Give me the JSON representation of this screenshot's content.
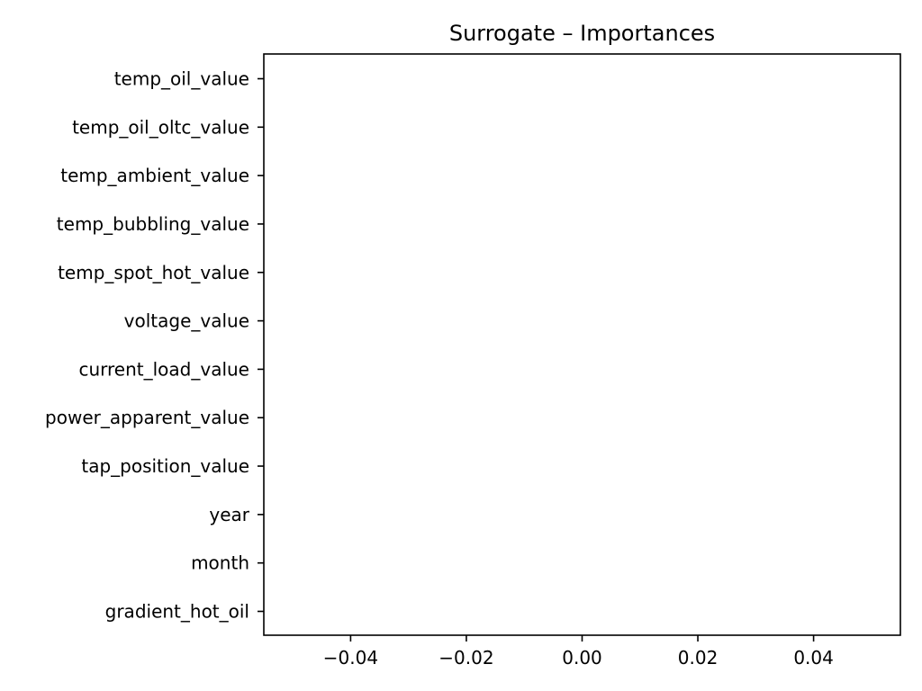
{
  "chart_data": {
    "type": "bar",
    "orientation": "horizontal",
    "title": "Surrogate – Importances",
    "xlabel": "",
    "ylabel": "",
    "categories": [
      "temp_oil_value",
      "temp_oil_oltc_value",
      "temp_ambient_value",
      "temp_bubbling_value",
      "temp_spot_hot_value",
      "voltage_value",
      "current_load_value",
      "power_apparent_value",
      "tap_position_value",
      "year",
      "month",
      "gradient_hot_oil"
    ],
    "values": [
      0,
      0,
      0,
      0,
      0,
      0,
      0,
      0,
      0,
      0,
      0,
      0
    ],
    "xlim": [
      -0.055,
      0.055
    ],
    "xticks": [
      -0.04,
      -0.02,
      0.0,
      0.02,
      0.04
    ],
    "xtick_labels": [
      "−0.04",
      "−0.02",
      "0.00",
      "0.02",
      "0.04"
    ],
    "grid": false,
    "bar_color": "#1f77b4"
  }
}
